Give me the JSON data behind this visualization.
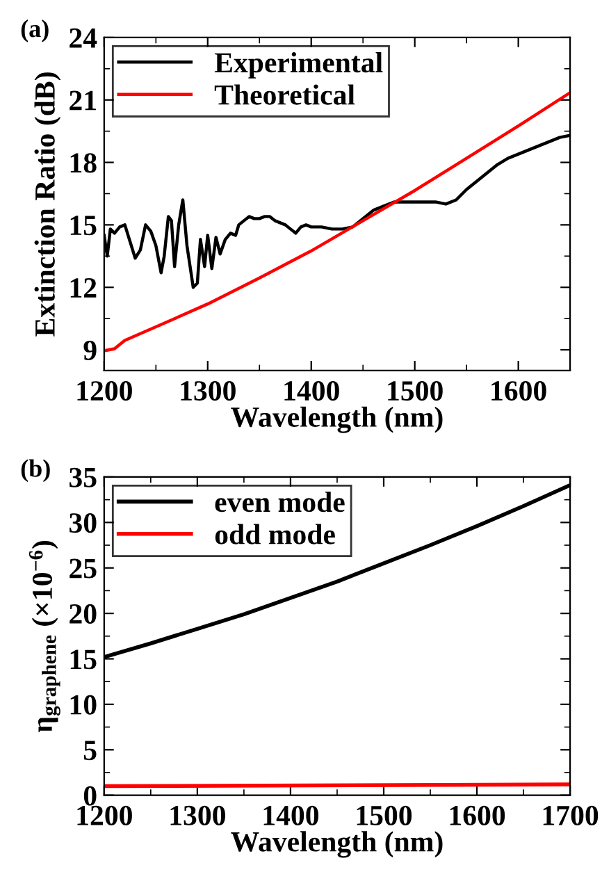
{
  "chart_data": [
    {
      "type": "line",
      "xlabel": "Wavelength (nm)",
      "ylabel": "Extinction Ratio (dB)",
      "annotations": [
        "(a)"
      ],
      "xlim": [
        1200,
        1650
      ],
      "ylim": [
        8,
        24
      ],
      "xticks": [
        1200,
        1300,
        1400,
        1500,
        1600
      ],
      "yticks": [
        9,
        12,
        15,
        18,
        21,
        24
      ],
      "legend": "top left",
      "grid": false,
      "series": [
        {
          "name": "Experimental",
          "color": "#000000",
          "x": [
            1200,
            1203,
            1206,
            1210,
            1215,
            1220,
            1225,
            1230,
            1235,
            1240,
            1245,
            1250,
            1255,
            1258,
            1262,
            1265,
            1268,
            1272,
            1276,
            1280,
            1283,
            1286,
            1290,
            1293,
            1297,
            1300,
            1304,
            1308,
            1312,
            1317,
            1322,
            1327,
            1330,
            1335,
            1340,
            1345,
            1350,
            1355,
            1360,
            1365,
            1370,
            1375,
            1380,
            1385,
            1390,
            1395,
            1400,
            1410,
            1420,
            1430,
            1440,
            1450,
            1460,
            1470,
            1480,
            1490,
            1500,
            1510,
            1520,
            1530,
            1540,
            1550,
            1560,
            1570,
            1580,
            1590,
            1600,
            1610,
            1620,
            1630,
            1640,
            1650
          ],
          "values": [
            14.5,
            13.5,
            14.8,
            14.6,
            14.9,
            15.0,
            14.2,
            13.4,
            13.8,
            15.0,
            14.7,
            14.0,
            12.7,
            13.5,
            15.4,
            15.2,
            13.0,
            15.0,
            16.2,
            14.0,
            13.0,
            12.0,
            12.2,
            14.3,
            13.0,
            14.5,
            12.9,
            14.4,
            13.6,
            14.3,
            14.6,
            14.5,
            15.0,
            15.2,
            15.4,
            15.3,
            15.3,
            15.4,
            15.4,
            15.2,
            15.1,
            15.0,
            14.8,
            14.6,
            14.9,
            15.0,
            14.9,
            14.9,
            14.8,
            14.8,
            14.9,
            15.3,
            15.7,
            15.9,
            16.1,
            16.1,
            16.1,
            16.1,
            16.1,
            16.0,
            16.2,
            16.7,
            17.1,
            17.5,
            17.9,
            18.2,
            18.4,
            18.6,
            18.8,
            19.0,
            19.2,
            19.3
          ]
        },
        {
          "name": "Theoretical",
          "color": "#ff0000",
          "x": [
            1200,
            1210,
            1220,
            1250,
            1300,
            1350,
            1400,
            1450,
            1500,
            1550,
            1600,
            1650
          ],
          "values": [
            8.95,
            9.05,
            9.45,
            10.1,
            11.2,
            12.45,
            13.75,
            15.2,
            16.65,
            18.2,
            19.75,
            21.35
          ]
        }
      ]
    },
    {
      "type": "line",
      "xlabel": "Wavelength (nm)",
      "ylabel": "η$_{graphene}$ (×10$^{−6}$)",
      "annotations": [
        "(b)"
      ],
      "xlim": [
        1200,
        1700
      ],
      "ylim": [
        0,
        35
      ],
      "xticks": [
        1200,
        1300,
        1400,
        1500,
        1600,
        1700
      ],
      "yticks": [
        0,
        5,
        10,
        15,
        20,
        25,
        30,
        35
      ],
      "legend": "top left",
      "grid": false,
      "series": [
        {
          "name": "even mode",
          "color": "#000000",
          "x": [
            1200,
            1250,
            1300,
            1350,
            1400,
            1450,
            1500,
            1550,
            1600,
            1650,
            1700
          ],
          "values": [
            15.2,
            16.7,
            18.3,
            19.9,
            21.7,
            23.5,
            25.5,
            27.5,
            29.6,
            31.8,
            34.1
          ]
        },
        {
          "name": "odd mode",
          "color": "#ff0000",
          "x": [
            1200,
            1700
          ],
          "values": [
            1.0,
            1.2
          ]
        }
      ]
    }
  ]
}
